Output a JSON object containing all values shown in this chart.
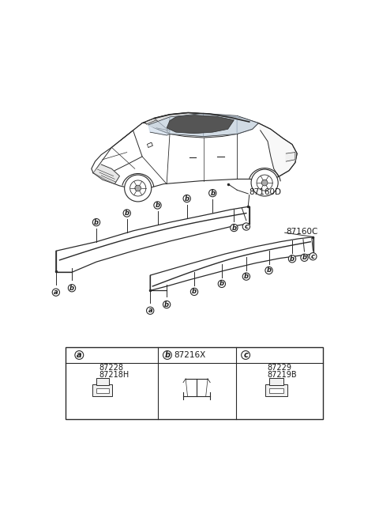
{
  "bg_color": "#ffffff",
  "line_color": "#2a2a2a",
  "text_color": "#1a1a1a",
  "fig_width": 4.8,
  "fig_height": 6.55,
  "dpi": 100,
  "label_87160D": "87160D",
  "label_87160C": "87160C",
  "label_87216X": "87216X",
  "label_87228": "87228",
  "label_87218H": "87218H",
  "label_87229": "87229",
  "label_87219B": "87219B",
  "circle_a": "a",
  "circle_b": "b",
  "circle_c": "c"
}
